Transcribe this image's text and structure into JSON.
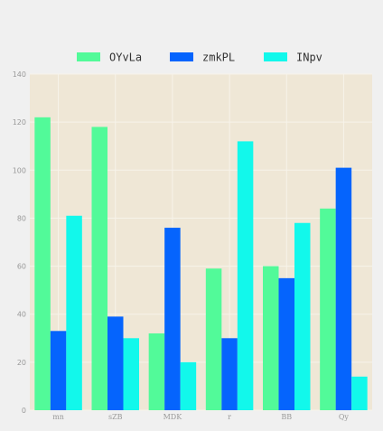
{
  "chart_data": {
    "type": "bar",
    "categories": [
      "mn",
      "sZB",
      "MDK",
      "r",
      "BB",
      "Qy"
    ],
    "series": [
      {
        "name": "OYvLa",
        "color": "#52fa99",
        "values": [
          122,
          118,
          32,
          59,
          60,
          84
        ]
      },
      {
        "name": "zmkPL",
        "color": "#0564fd",
        "values": [
          33,
          39,
          76,
          30,
          55,
          101
        ]
      },
      {
        "name": "INpv",
        "color": "#12f8eb",
        "values": [
          81,
          30,
          20,
          112,
          78,
          14
        ]
      }
    ],
    "yticks": [
      0,
      20,
      40,
      60,
      80,
      100,
      120,
      140
    ],
    "ylim": [
      0,
      140
    ],
    "grid": true,
    "legend_position": "top-center",
    "plot_background": "#efe7d6",
    "page_background": "#f0f0f0",
    "grid_color": "#f7f3ea"
  }
}
